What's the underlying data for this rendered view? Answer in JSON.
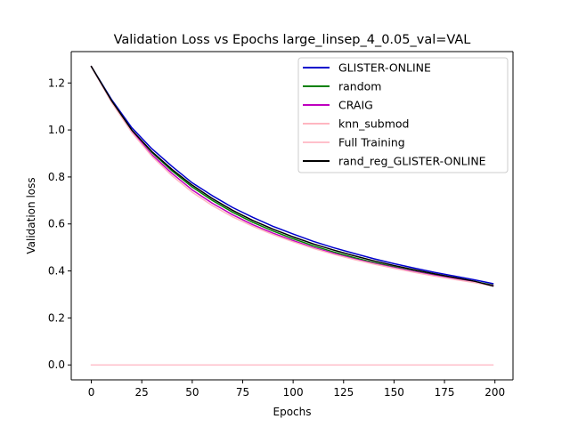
{
  "chart_data": {
    "type": "line",
    "title": "Validation Loss vs Epochs large_linsep_4_0.05_val=VAL",
    "xlabel": "Epochs",
    "ylabel": "Validation loss",
    "xlim": [
      -9.95,
      208.95
    ],
    "ylim": [
      -0.0635,
      1.3335
    ],
    "xticks": [
      0,
      25,
      50,
      75,
      100,
      125,
      150,
      175,
      200
    ],
    "yticks": [
      0.0,
      0.2,
      0.4,
      0.6,
      0.8,
      1.0,
      1.2
    ],
    "ytick_labels": [
      "0.0",
      "0.2",
      "0.4",
      "0.6",
      "0.8",
      "1.0",
      "1.2"
    ],
    "grid": false,
    "legend_position": "top-right",
    "x": [
      0,
      10,
      20,
      30,
      40,
      50,
      60,
      70,
      80,
      90,
      100,
      110,
      120,
      130,
      140,
      150,
      160,
      170,
      180,
      190,
      199
    ],
    "series": [
      {
        "name": "GLISTER-ONLINE",
        "color": "#0000cc",
        "values": [
          1.27,
          1.13,
          1.01,
          0.92,
          0.845,
          0.775,
          0.72,
          0.67,
          0.628,
          0.59,
          0.557,
          0.526,
          0.499,
          0.475,
          0.452,
          0.431,
          0.412,
          0.394,
          0.378,
          0.362,
          0.346
        ]
      },
      {
        "name": "random",
        "color": "#008000",
        "values": [
          1.27,
          1.125,
          1.0,
          0.905,
          0.826,
          0.757,
          0.7,
          0.65,
          0.607,
          0.57,
          0.537,
          0.507,
          0.481,
          0.457,
          0.436,
          0.417,
          0.399,
          0.383,
          0.368,
          0.354,
          0.34
        ]
      },
      {
        "name": "CRAIG",
        "color": "#bf00bf",
        "values": [
          1.27,
          1.12,
          0.995,
          0.895,
          0.815,
          0.745,
          0.688,
          0.639,
          0.597,
          0.561,
          0.529,
          0.5,
          0.475,
          0.452,
          0.432,
          0.414,
          0.397,
          0.381,
          0.366,
          0.352,
          0.338
        ]
      },
      {
        "name": "knn_submod",
        "color": "#ffb6c1",
        "values": [
          1.27,
          1.118,
          0.99,
          0.888,
          0.805,
          0.735,
          0.678,
          0.63,
          0.59,
          0.555,
          0.524,
          0.496,
          0.471,
          0.449,
          0.429,
          0.411,
          0.394,
          0.378,
          0.364,
          0.35,
          0.336
        ]
      },
      {
        "name": "Full Training",
        "color": "#ffc0cb",
        "values": [
          0.0,
          0.0,
          0.0,
          0.0,
          0.0,
          0.0,
          0.0,
          0.0,
          0.0,
          0.0,
          0.0,
          0.0,
          0.0,
          0.0,
          0.0,
          0.0,
          0.0,
          0.0,
          0.0,
          0.0,
          0.0
        ]
      },
      {
        "name": "rand_reg_GLISTER-ONLINE",
        "color": "#000000",
        "values": [
          1.27,
          1.125,
          1.0,
          0.908,
          0.832,
          0.765,
          0.708,
          0.658,
          0.615,
          0.578,
          0.545,
          0.515,
          0.489,
          0.465,
          0.443,
          0.423,
          0.405,
          0.388,
          0.372,
          0.356,
          0.336
        ]
      }
    ]
  }
}
